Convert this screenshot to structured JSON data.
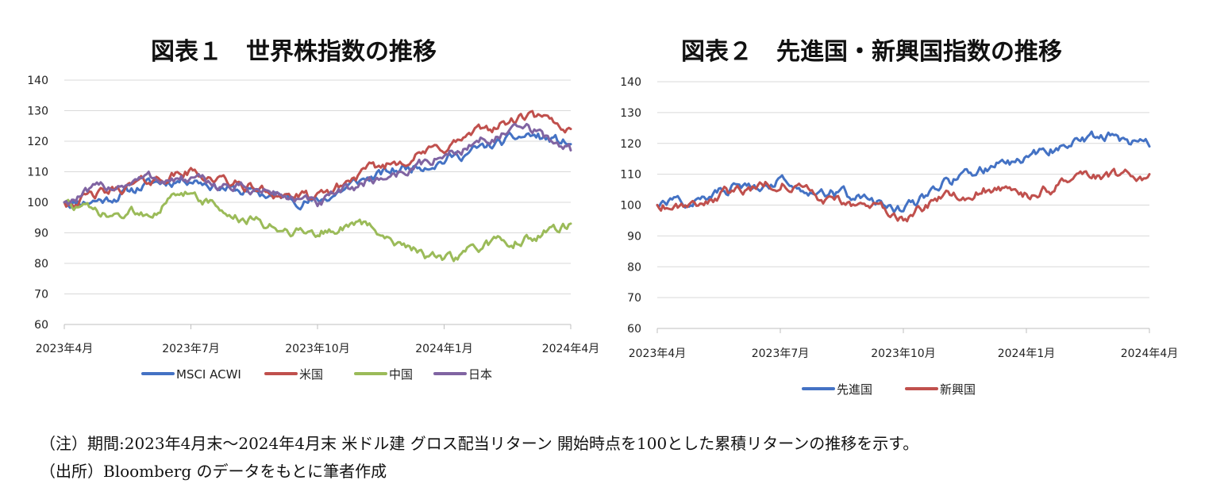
{
  "notes": {
    "line1": "（注）期間:2023年4月末～2024年4月末 米ドル建 グロス配当リターン 開始時点を100とした累積リターンの推移を示す。",
    "line2": "（出所）Bloomberg のデータをもとに筆者作成"
  },
  "chart_data": [
    {
      "type": "line",
      "title": "図表１　世界株指数の推移",
      "x_ticks": [
        "2023年4月",
        "2023年7月",
        "2023年10月",
        "2024年1月",
        "2024年4月"
      ],
      "y_ticks": [
        60,
        70,
        80,
        90,
        100,
        110,
        120,
        130,
        140
      ],
      "ylim": [
        60,
        140
      ],
      "grid": true,
      "legend": "bottom",
      "x": [
        "2023-04",
        "2023-05",
        "2023-06",
        "2023-07",
        "2023-08",
        "2023-09",
        "2023-10",
        "2023-11",
        "2023-12",
        "2024-01",
        "2024-02",
        "2024-03",
        "2024-04"
      ],
      "series": [
        {
          "name": "MSCI ACWI",
          "color": "#4472C4",
          "values": [
            100,
            101,
            106,
            108,
            104,
            102,
            100,
            107,
            111,
            114,
            118,
            122,
            119
          ]
        },
        {
          "name": "米国",
          "color": "#C0504D",
          "values": [
            100,
            103,
            107,
            110,
            106,
            103,
            101,
            109,
            114,
            118,
            124,
            128,
            124
          ]
        },
        {
          "name": "中国",
          "color": "#9BBB59",
          "values": [
            100,
            95,
            97,
            104,
            95,
            92,
            90,
            93,
            87,
            80,
            86,
            88,
            93
          ]
        },
        {
          "name": "日本",
          "color": "#8064A2",
          "values": [
            100,
            105,
            108,
            107,
            105,
            103,
            99,
            106,
            110,
            115,
            121,
            124,
            117
          ]
        }
      ]
    },
    {
      "type": "line",
      "title": "図表２　先進国・新興国指数の推移",
      "x_ticks": [
        "2023年4月",
        "2023年7月",
        "2023年10月",
        "2024年1月",
        "2024年4月"
      ],
      "y_ticks": [
        60,
        70,
        80,
        90,
        100,
        110,
        120,
        130,
        140
      ],
      "ylim": [
        60,
        140
      ],
      "grid": true,
      "legend": "bottom",
      "x": [
        "2023-04",
        "2023-05",
        "2023-06",
        "2023-07",
        "2023-08",
        "2023-09",
        "2023-10",
        "2023-11",
        "2023-12",
        "2024-01",
        "2024-02",
        "2024-03",
        "2024-04"
      ],
      "series": [
        {
          "name": "先進国",
          "color": "#4472C4",
          "values": [
            100,
            102,
            106,
            108,
            105,
            102,
            98,
            107,
            112,
            115,
            120,
            123,
            119
          ]
        },
        {
          "name": "新興国",
          "color": "#C0504D",
          "values": [
            100,
            101,
            105,
            108,
            102,
            100,
            96,
            102,
            105,
            103,
            107,
            109,
            110
          ]
        }
      ]
    }
  ]
}
